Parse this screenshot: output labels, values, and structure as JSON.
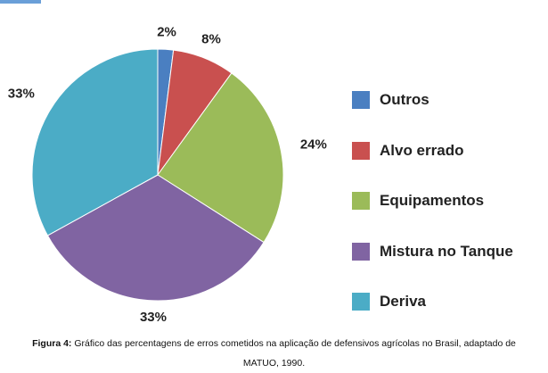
{
  "chart_data": {
    "type": "pie",
    "title": "",
    "start_angle_deg": 0,
    "direction": "clockwise",
    "slices": [
      {
        "label": "Outros",
        "value": 2,
        "display": "2%",
        "color": "#4a7fc1"
      },
      {
        "label": "Alvo errado",
        "value": 8,
        "display": "8%",
        "color": "#c9504f"
      },
      {
        "label": "Equipamentos",
        "value": 24,
        "display": "24%",
        "color": "#9bbb59"
      },
      {
        "label": "Mistura no Tanque",
        "value": 33,
        "display": "33%",
        "color": "#8064a2"
      },
      {
        "label": "Deriva",
        "value": 33,
        "display": "33%",
        "color": "#4bacc6"
      }
    ],
    "legend_position": "right"
  },
  "caption": {
    "label": "Figura 4:",
    "line1": "Gráfico das percentagens de erros cometidos na aplicação de defensivos agrícolas no Brasil, adaptado de",
    "line2": "MATUO, 1990."
  }
}
